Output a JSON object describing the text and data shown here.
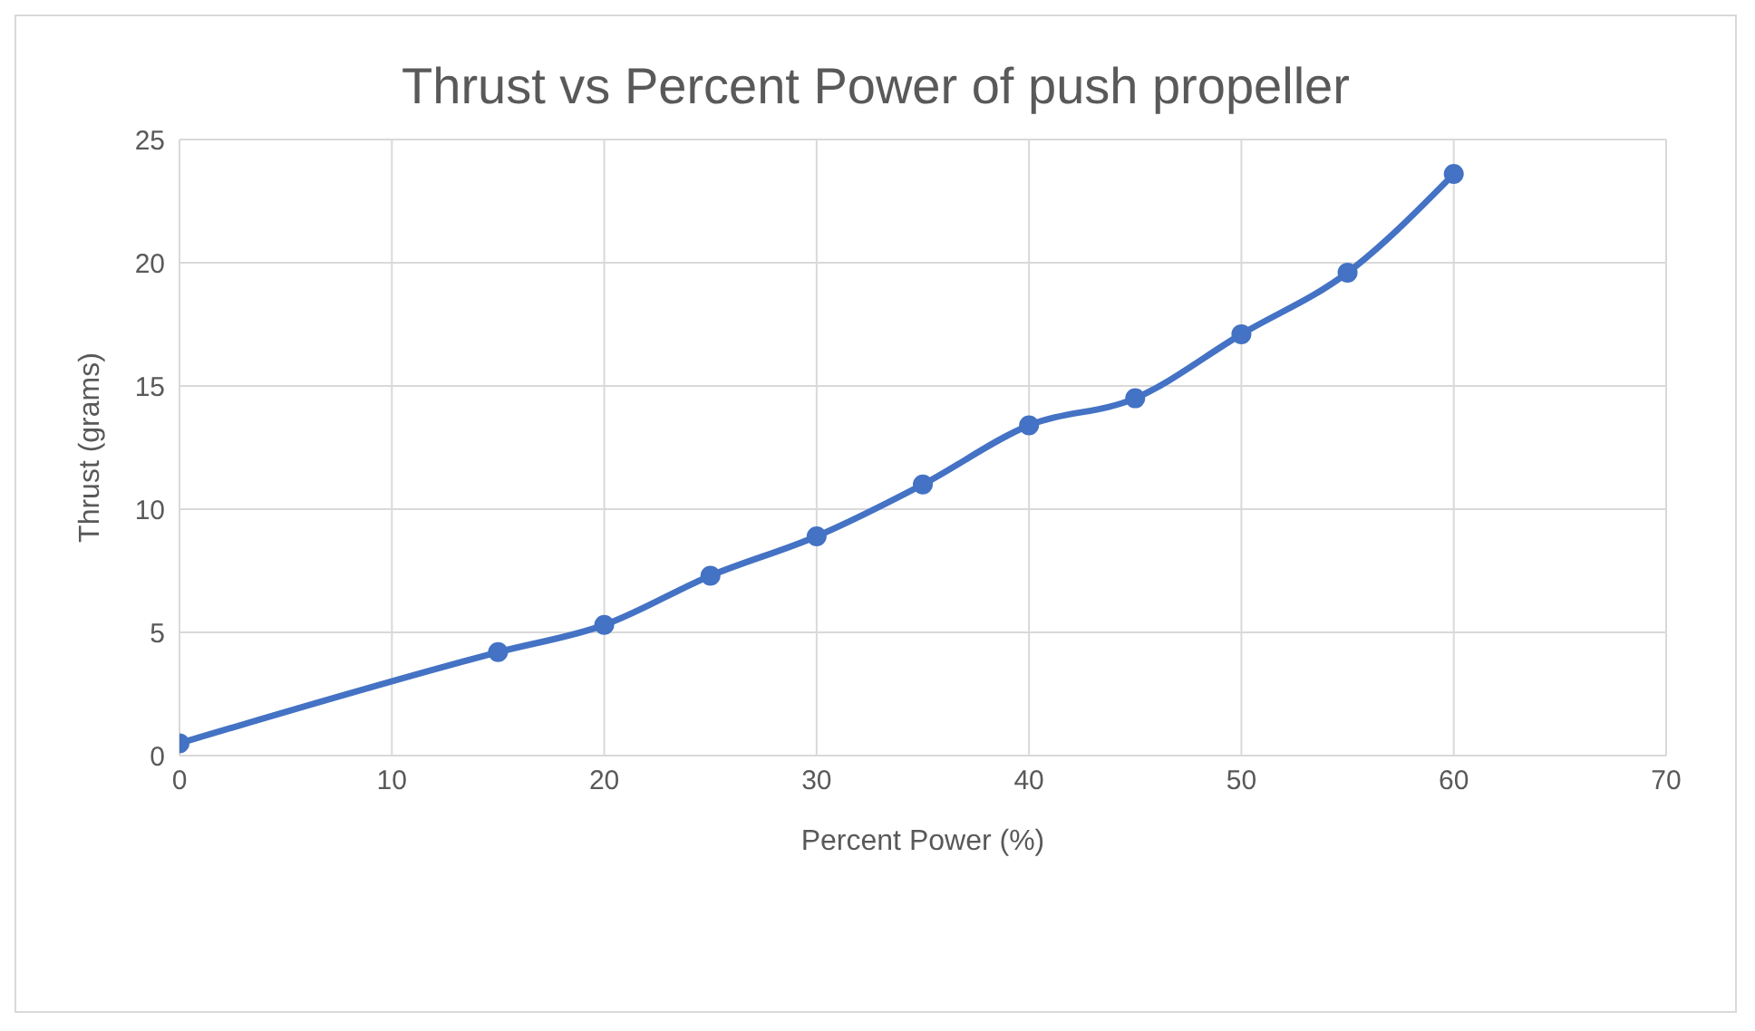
{
  "chart_data": {
    "type": "line",
    "title": "Thrust vs Percent Power of push propeller",
    "xlabel": "Percent Power (%)",
    "ylabel": "Thrust (grams)",
    "x": [
      0,
      15,
      20,
      25,
      30,
      35,
      40,
      45,
      50,
      55,
      60
    ],
    "series": [
      {
        "color": "#4472c4",
        "values": [
          0.5,
          4.2,
          5.3,
          7.3,
          8.9,
          11.0,
          13.4,
          14.5,
          17.1,
          19.6,
          23.6
        ]
      }
    ],
    "xlim": [
      0,
      70
    ],
    "xticks": [
      0,
      10,
      20,
      30,
      40,
      50,
      60,
      70
    ],
    "ylim": [
      0,
      25
    ],
    "yticks": [
      0,
      5,
      10,
      15,
      20,
      25
    ],
    "grid": true,
    "legend": false,
    "marker": "circle",
    "line_style": "solid"
  }
}
